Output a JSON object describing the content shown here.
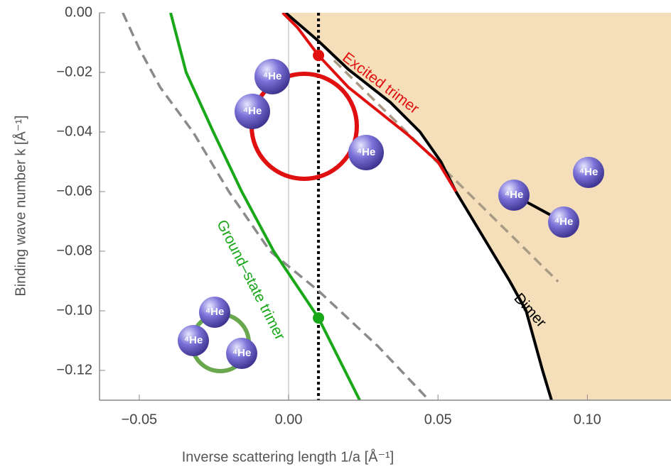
{
  "chart_data": {
    "type": "line",
    "x_label": "Inverse scattering length 1/a [Å⁻¹]",
    "y_label": "Binding wave number k [Å⁻¹]",
    "xlim": [
      -0.0633,
      0.128
    ],
    "ylim": [
      -0.13,
      0
    ],
    "xticks": [
      {
        "value": -0.05,
        "label": "−0.05"
      },
      {
        "value": 0,
        "label": "0.00"
      },
      {
        "value": 0.05,
        "label": "0.05"
      },
      {
        "value": 0.1,
        "label": "0.10"
      }
    ],
    "yticks": [
      {
        "value": 0,
        "label": "0.00"
      },
      {
        "value": -0.02,
        "label": "−0.02"
      },
      {
        "value": -0.04,
        "label": "−0.04"
      },
      {
        "value": -0.06,
        "label": "−0.06"
      },
      {
        "value": -0.08,
        "label": "−0.08"
      },
      {
        "value": -0.1,
        "label": "−0.10"
      },
      {
        "value": -0.12,
        "label": "−0.12"
      }
    ],
    "shade_color": "#f5dfbb",
    "series": [
      {
        "color": "#8a8a8a",
        "dash": true,
        "x": [
          -0.0555,
          -0.05,
          -0.043,
          -0.032,
          -0.02,
          -0.0062,
          0.01,
          0.03,
          0.047
        ],
        "values": [
          0,
          -0.012,
          -0.025,
          -0.04,
          -0.06,
          -0.08,
          -0.0933,
          -0.112,
          -0.13
        ]
      },
      {
        "color": "#a89a85",
        "dash": true,
        "x": [
          0.0152,
          0.0902
        ],
        "values": [
          -0.016,
          -0.0902
        ]
      },
      {
        "name": "Dimer",
        "color": "#000000",
        "dash": false,
        "x": [
          -0.001,
          0.01,
          0.02,
          0.034,
          0.044,
          0.051,
          0.056,
          0.062,
          0.068,
          0.074,
          0.0795,
          0.085,
          0.088
        ],
        "values": [
          0,
          -0.0095,
          -0.019,
          -0.03,
          -0.04,
          -0.05,
          -0.06,
          -0.07,
          -0.08,
          -0.09,
          -0.1,
          -0.12,
          -0.13
        ]
      },
      {
        "name": "Excited trimer",
        "color": "#e01010",
        "dash": false,
        "x": [
          -0.002,
          0.003,
          0.01,
          0.02,
          0.03,
          0.04,
          0.05,
          0.056
        ],
        "values": [
          0,
          -0.005,
          -0.0143,
          -0.025,
          -0.033,
          -0.041,
          -0.05,
          -0.06
        ]
      },
      {
        "name": "Ground–state trimer",
        "color": "#1aa81a",
        "dash": false,
        "x": [
          -0.0395,
          -0.0343,
          -0.0252,
          -0.0157,
          -0.005,
          0.01,
          0.0238
        ],
        "values": [
          0,
          -0.02,
          -0.04,
          -0.06,
          -0.08,
          -0.1024,
          -0.13
        ]
      }
    ],
    "points": [
      {
        "x": 0.01,
        "y": -0.0143,
        "color": "#e01010"
      },
      {
        "x": 0.01,
        "y": -0.1024,
        "color": "#1aa81a"
      }
    ],
    "vlines": [
      {
        "x": 0,
        "color": "#cccccc",
        "dotted": false
      },
      {
        "x": 0.01,
        "color": "#000000",
        "dotted": true
      }
    ],
    "atom_label": "⁴He"
  }
}
